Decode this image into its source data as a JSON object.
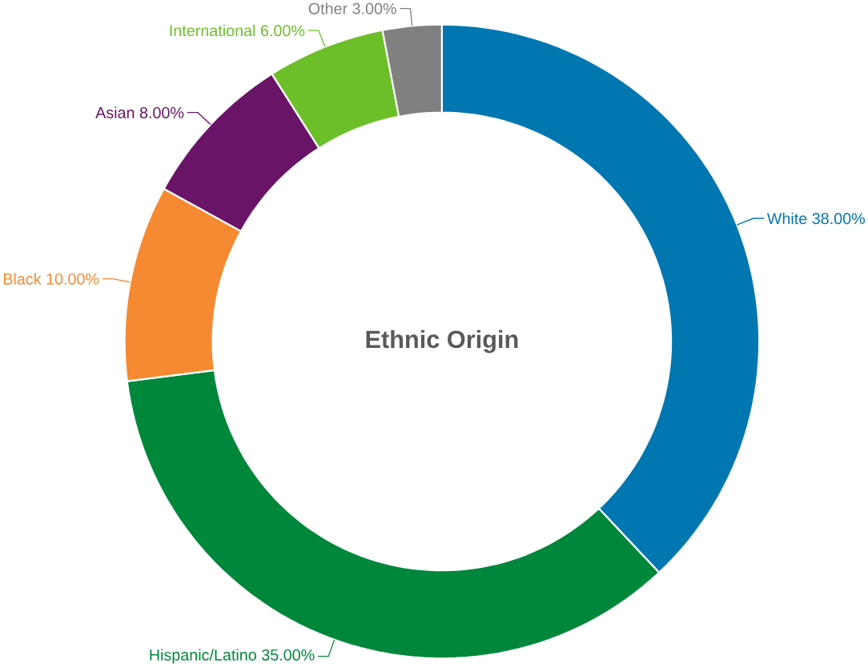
{
  "chart_data": {
    "type": "donut",
    "title": "Ethnic Origin",
    "categories": [
      "White",
      "Hispanic/Latino",
      "Black",
      "Asian",
      "International",
      "Other"
    ],
    "values": [
      38,
      35,
      10,
      8,
      6,
      3
    ],
    "value_labels": [
      "38.00%",
      "35.00%",
      "10.00%",
      "8.00%",
      "6.00%",
      "3.00%"
    ],
    "colors": [
      "#0077b0",
      "#00873c",
      "#f58a32",
      "#6a1467",
      "#6dbf2a",
      "#808080"
    ]
  }
}
